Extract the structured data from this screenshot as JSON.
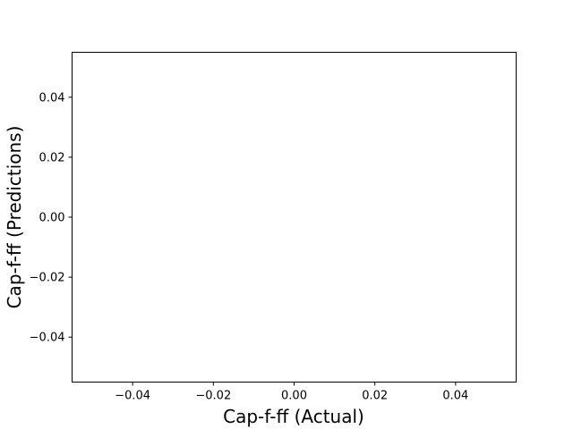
{
  "chart_data": {
    "type": "scatter",
    "title": "",
    "xlabel": "Cap-f-ff (Actual)",
    "ylabel": "Cap-f-ff (Predictions)",
    "xlim": [
      -0.055,
      0.055
    ],
    "ylim": [
      -0.055,
      0.055
    ],
    "x_ticks": [
      -0.04,
      -0.02,
      0.0,
      0.02,
      0.04
    ],
    "y_ticks": [
      -0.04,
      -0.02,
      0.0,
      0.02,
      0.04
    ],
    "x_tick_labels": [
      "−0.04",
      "−0.02",
      "0.00",
      "0.02",
      "0.04"
    ],
    "y_tick_labels": [
      "−0.04",
      "−0.02",
      "0.00",
      "0.02",
      "0.04"
    ],
    "grid": false,
    "series": [
      {
        "x": [],
        "y": []
      }
    ]
  }
}
